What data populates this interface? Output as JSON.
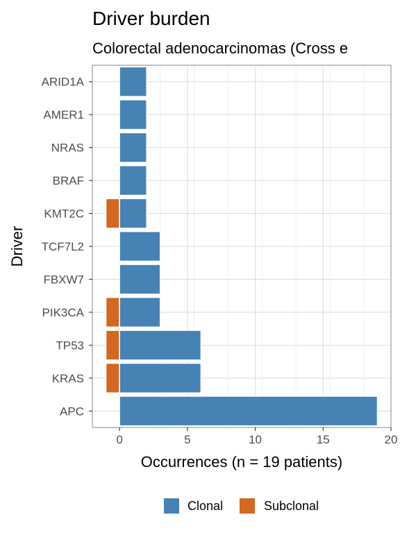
{
  "chart_data": {
    "type": "bar",
    "orientation": "horizontal",
    "title": "Driver burden",
    "subtitle": "Colorectal adenocarcinomas (Cross e",
    "xlabel": "Occurrences (n = 19 patients)",
    "ylabel": "Driver",
    "xlim": [
      -2,
      20
    ],
    "xticks": [
      0,
      5,
      10,
      15,
      20
    ],
    "categories": [
      "APC",
      "KRAS",
      "TP53",
      "PIK3CA",
      "FBXW7",
      "TCF7L2",
      "KMT2C",
      "BRAF",
      "NRAS",
      "AMER1",
      "ARID1A"
    ],
    "series": [
      {
        "name": "Clonal",
        "color": "#4682B4",
        "values": [
          19,
          6,
          6,
          3,
          3,
          3,
          2,
          2,
          2,
          2,
          2
        ]
      },
      {
        "name": "Subclonal",
        "color": "#D2691E",
        "values": [
          0,
          -1,
          -1,
          -1,
          0,
          0,
          -1,
          0,
          0,
          0,
          0
        ]
      }
    ],
    "grid": true,
    "legend": {
      "position": "bottom"
    }
  }
}
